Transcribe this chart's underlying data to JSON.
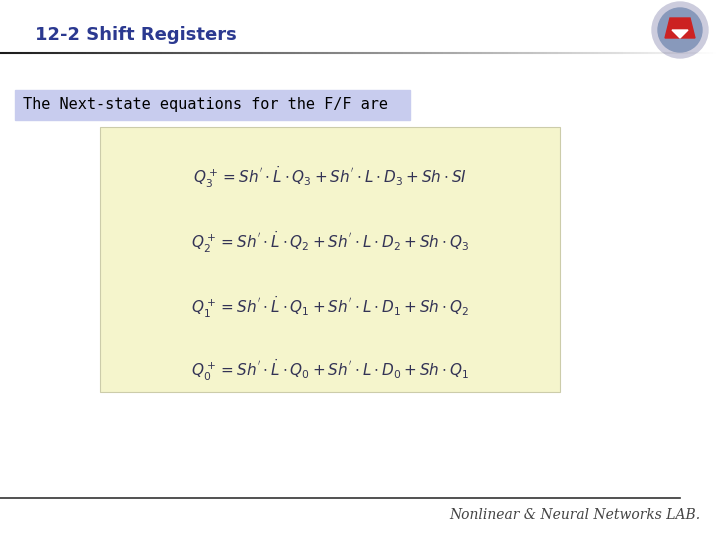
{
  "title": "12-2 Shift Registers",
  "title_color": "#2B3990",
  "title_fontsize": 13,
  "bg_color": "#FFFFFF",
  "subtitle_text": "The Next-state equations for the F/F are",
  "subtitle_bg": "#C8CCEE",
  "subtitle_fontsize": 11,
  "eq_box_bg": "#F5F5CC",
  "eq_box_edge": "#CCCCAA",
  "eq_fontsize": 11,
  "eq_color": "#333355",
  "footer_text": "Nonlinear & Neural Networks LAB.",
  "footer_color": "#444444",
  "footer_fontsize": 10,
  "bottom_line_color": "#333333"
}
